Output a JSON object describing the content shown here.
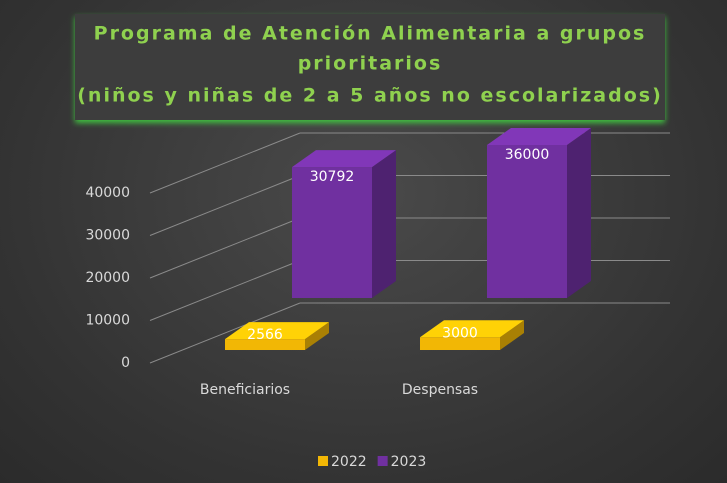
{
  "chart_data": {
    "type": "bar3d",
    "title": [
      "Programa de Atención Alimentaria a grupos",
      "prioritarios",
      "(niños y niñas de 2 a 5 años no escolarizados)"
    ],
    "categories": [
      "Beneficiarios",
      "Despensas"
    ],
    "series": [
      {
        "name": "2022",
        "color": "#f2b705",
        "values": [
          2566,
          3000
        ]
      },
      {
        "name": "2023",
        "color": "#7030a0",
        "values": [
          30792,
          36000
        ]
      }
    ],
    "ylim": [
      0,
      40000
    ],
    "yticks": [
      0,
      10000,
      20000,
      30000,
      40000
    ],
    "grid": true,
    "legend": "bottom"
  }
}
